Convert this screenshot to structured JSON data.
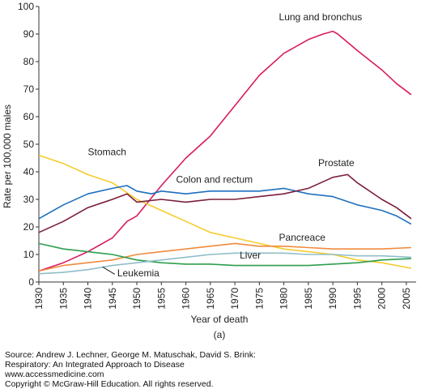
{
  "chart_data": {
    "type": "line",
    "ylabel": "Rate per 100,000 males",
    "xlabel": "Year of death",
    "panel_label": "(a)",
    "xlim": [
      1930,
      2007
    ],
    "ylim": [
      0,
      100
    ],
    "x_ticks": [
      1930,
      1935,
      1940,
      1945,
      1950,
      1955,
      1960,
      1965,
      1970,
      1975,
      1980,
      1985,
      1990,
      1995,
      2000,
      2005
    ],
    "y_ticks": [
      0,
      10,
      20,
      30,
      40,
      50,
      60,
      70,
      80,
      90,
      100
    ],
    "grid": false,
    "legend": "none (inline series labels)",
    "series": [
      {
        "name": "Lung and bronchus",
        "color": "#d81b60",
        "points": [
          [
            1930,
            4
          ],
          [
            1935,
            7
          ],
          [
            1940,
            11
          ],
          [
            1945,
            16
          ],
          [
            1948,
            22
          ],
          [
            1950,
            24
          ],
          [
            1955,
            35
          ],
          [
            1960,
            45
          ],
          [
            1965,
            53
          ],
          [
            1970,
            64
          ],
          [
            1975,
            75
          ],
          [
            1980,
            83
          ],
          [
            1985,
            88
          ],
          [
            1988,
            90
          ],
          [
            1990,
            91
          ],
          [
            1991,
            90
          ],
          [
            1995,
            84
          ],
          [
            2000,
            77
          ],
          [
            2003,
            72
          ],
          [
            2006,
            68
          ]
        ]
      },
      {
        "name": "Stomach",
        "color": "#f5cc2e",
        "points": [
          [
            1930,
            46
          ],
          [
            1935,
            43
          ],
          [
            1940,
            39
          ],
          [
            1945,
            36
          ],
          [
            1950,
            30
          ],
          [
            1955,
            26
          ],
          [
            1960,
            22
          ],
          [
            1965,
            18
          ],
          [
            1970,
            16
          ],
          [
            1975,
            14
          ],
          [
            1980,
            12
          ],
          [
            1985,
            11
          ],
          [
            1990,
            10
          ],
          [
            1995,
            8
          ],
          [
            2000,
            7
          ],
          [
            2006,
            5
          ]
        ]
      },
      {
        "name": "Colon and rectum",
        "color": "#1e6fbf",
        "points": [
          [
            1930,
            23
          ],
          [
            1935,
            28
          ],
          [
            1940,
            32
          ],
          [
            1945,
            34
          ],
          [
            1948,
            35
          ],
          [
            1950,
            33
          ],
          [
            1953,
            32
          ],
          [
            1955,
            33
          ],
          [
            1960,
            32
          ],
          [
            1965,
            33
          ],
          [
            1970,
            33
          ],
          [
            1975,
            33
          ],
          [
            1980,
            34
          ],
          [
            1985,
            32
          ],
          [
            1990,
            31
          ],
          [
            1995,
            28
          ],
          [
            2000,
            26
          ],
          [
            2003,
            24
          ],
          [
            2006,
            21
          ]
        ]
      },
      {
        "name": "Prostate",
        "color": "#7b1f3a",
        "points": [
          [
            1930,
            18
          ],
          [
            1935,
            22
          ],
          [
            1940,
            27
          ],
          [
            1945,
            30
          ],
          [
            1948,
            32
          ],
          [
            1950,
            29
          ],
          [
            1955,
            30
          ],
          [
            1960,
            29
          ],
          [
            1965,
            30
          ],
          [
            1970,
            30
          ],
          [
            1975,
            31
          ],
          [
            1980,
            32
          ],
          [
            1985,
            34
          ],
          [
            1990,
            38
          ],
          [
            1993,
            39
          ],
          [
            1995,
            36
          ],
          [
            2000,
            30
          ],
          [
            2003,
            27
          ],
          [
            2006,
            23
          ]
        ]
      },
      {
        "name": "Pancreace",
        "color": "#f08a3c",
        "points": [
          [
            1930,
            4
          ],
          [
            1935,
            6
          ],
          [
            1940,
            7
          ],
          [
            1945,
            8
          ],
          [
            1950,
            10
          ],
          [
            1955,
            11
          ],
          [
            1960,
            12
          ],
          [
            1965,
            13
          ],
          [
            1970,
            14
          ],
          [
            1975,
            13
          ],
          [
            1980,
            13
          ],
          [
            1985,
            12.5
          ],
          [
            1990,
            12
          ],
          [
            1995,
            12
          ],
          [
            2000,
            12
          ],
          [
            2006,
            12.5
          ]
        ]
      },
      {
        "name": "Liver",
        "color": "#2e9e4e",
        "points": [
          [
            1930,
            14
          ],
          [
            1935,
            12
          ],
          [
            1940,
            11
          ],
          [
            1945,
            10
          ],
          [
            1950,
            8
          ],
          [
            1955,
            7
          ],
          [
            1960,
            6.5
          ],
          [
            1965,
            6.5
          ],
          [
            1970,
            6
          ],
          [
            1975,
            6
          ],
          [
            1980,
            6
          ],
          [
            1985,
            6
          ],
          [
            1990,
            6.5
          ],
          [
            1995,
            7
          ],
          [
            2000,
            8
          ],
          [
            2006,
            8.5
          ]
        ]
      },
      {
        "name": "Leukemia",
        "color": "#8fbec9",
        "points": [
          [
            1930,
            3
          ],
          [
            1935,
            3.5
          ],
          [
            1940,
            4.5
          ],
          [
            1945,
            6
          ],
          [
            1950,
            7
          ],
          [
            1955,
            8
          ],
          [
            1960,
            9
          ],
          [
            1965,
            10
          ],
          [
            1970,
            10.5
          ],
          [
            1975,
            10.5
          ],
          [
            1980,
            10.5
          ],
          [
            1985,
            10
          ],
          [
            1990,
            10
          ],
          [
            1995,
            9.5
          ],
          [
            2000,
            9.5
          ],
          [
            2006,
            9
          ]
        ]
      }
    ],
    "annotations": [
      {
        "text": "Lung and bronchus",
        "x": 1979,
        "y": 95
      },
      {
        "text": "Stomach",
        "x": 1940,
        "y": 46
      },
      {
        "text": "Colon and rectum",
        "x": 1958,
        "y": 36
      },
      {
        "text": "Prostate",
        "x": 1987,
        "y": 42
      },
      {
        "text": "Pancreace",
        "x": 1979,
        "y": 15
      },
      {
        "text": "Liver",
        "x": 1971,
        "y": 8.5
      },
      {
        "text": "Leukemia",
        "x": 1946,
        "y": 2
      }
    ]
  },
  "source": {
    "line1": "Source: Andrew J. Lechner, George M. Matuschak, David S. Brink:",
    "line2": "Respiratory: An Integrated Approach to Disease",
    "line3": "www.accessmedicine.com",
    "line4": "Copyright © McGraw-Hill Education.  All rights reserved."
  }
}
